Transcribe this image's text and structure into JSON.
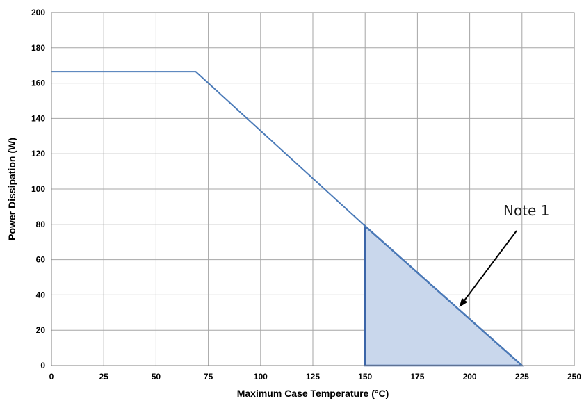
{
  "chart_data": {
    "type": "line",
    "xlabel": "Maximum Case Temperature (°C)",
    "ylabel": "Power Dissipation (W)",
    "xlim": [
      0,
      250
    ],
    "ylim": [
      0,
      200
    ],
    "x_ticks": [
      0,
      25,
      50,
      75,
      100,
      125,
      150,
      175,
      200,
      225,
      250
    ],
    "y_ticks": [
      0,
      20,
      40,
      60,
      80,
      100,
      120,
      140,
      160,
      180,
      200
    ],
    "grid": true,
    "series": [
      {
        "x": [
          0,
          69,
          150,
          225
        ],
        "y": [
          166.5,
          166.5,
          79,
          0
        ]
      }
    ],
    "shaded_region": {
      "x": [
        150,
        150,
        225
      ],
      "y": [
        0,
        79,
        0
      ]
    },
    "annotation": {
      "text": "Note 1",
      "target": [
        195,
        33
      ]
    },
    "colors": {
      "line": "#4a7ab8",
      "fill": "#c9d7ec",
      "region_edge": "#3b65a8",
      "grid": "#a6a6a6",
      "arrow": "#000000"
    }
  }
}
